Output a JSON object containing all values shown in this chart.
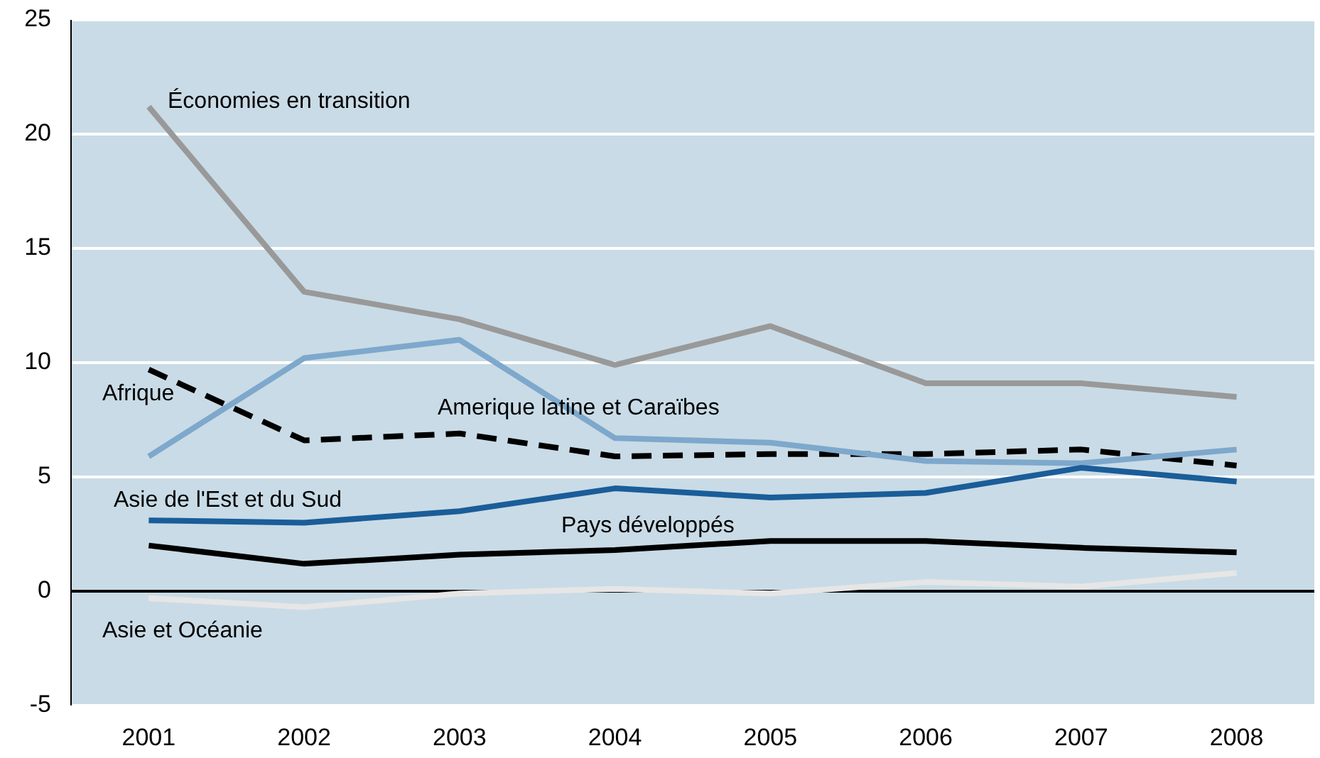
{
  "chart_data": {
    "type": "line",
    "categories": [
      "2001",
      "2002",
      "2003",
      "2004",
      "2005",
      "2006",
      "2007",
      "2008"
    ],
    "ylim": [
      -5,
      25
    ],
    "yticks": [
      -5,
      0,
      5,
      10,
      15,
      20,
      25
    ],
    "grid": "y",
    "ref_lines": [
      {
        "axis": "y",
        "value": 0,
        "color": "#000000"
      }
    ],
    "series": [
      {
        "name": "Économies en transition",
        "color": "#999999",
        "values": [
          21.2,
          13.1,
          11.9,
          9.9,
          11.6,
          9.1,
          9.1,
          8.5
        ]
      },
      {
        "name": "Afrique",
        "color": "#000000",
        "line_style": "dashed",
        "values": [
          9.7,
          6.6,
          6.9,
          5.9,
          6.0,
          6.0,
          6.2,
          5.5
        ]
      },
      {
        "name": "Amerique latine et Caraïbes",
        "color": "#7ea8cc",
        "values": [
          5.9,
          10.2,
          11.0,
          6.7,
          6.5,
          5.7,
          5.6,
          6.2
        ]
      },
      {
        "name": "Asie de l'Est et du Sud",
        "color": "#1a5d99",
        "values": [
          3.1,
          3.0,
          3.5,
          4.5,
          4.1,
          4.3,
          5.4,
          4.8
        ]
      },
      {
        "name": "Pays développés",
        "color": "#000000",
        "values": [
          2.0,
          1.2,
          1.6,
          1.8,
          2.2,
          2.2,
          1.9,
          1.7
        ]
      },
      {
        "name": "Asie et Océanie",
        "color": "#e6e6e6",
        "values": [
          -0.3,
          -0.7,
          -0.1,
          0.1,
          -0.1,
          0.4,
          0.2,
          0.8
        ]
      }
    ]
  }
}
